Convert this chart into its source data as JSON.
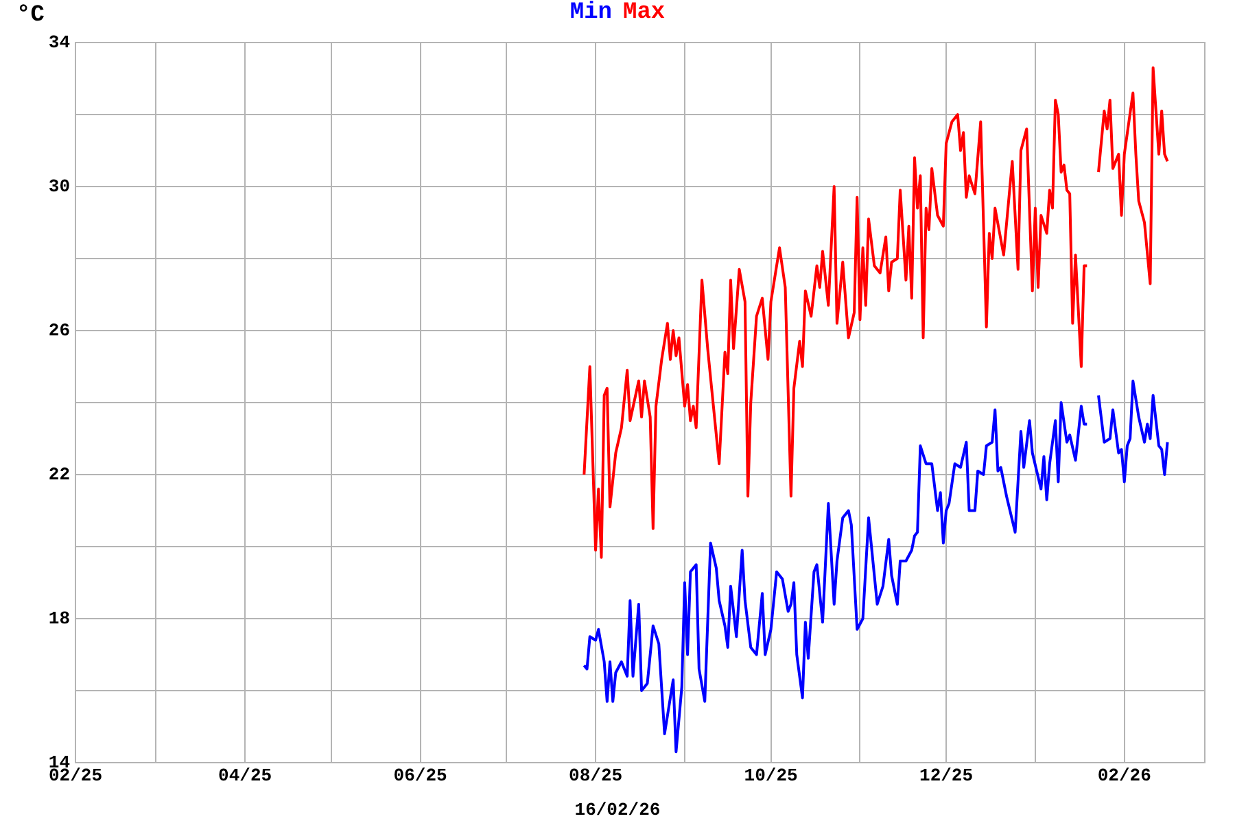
{
  "chart_data": {
    "type": "line",
    "ylabel": "°C",
    "legend": "top",
    "grid": true,
    "annotations": [
      "16/02/26"
    ],
    "xlim": [
      "2025-02-01",
      "2026-03-01"
    ],
    "xticks": [
      {
        "value": "2025-02",
        "label": "02/25"
      },
      {
        "value": "2025-03",
        "label": null
      },
      {
        "value": "2025-04",
        "label": "04/25"
      },
      {
        "value": "2025-05",
        "label": null
      },
      {
        "value": "2025-06",
        "label": "06/25"
      },
      {
        "value": "2025-07",
        "label": null
      },
      {
        "value": "2025-08",
        "label": "08/25"
      },
      {
        "value": "2025-09",
        "label": null
      },
      {
        "value": "2025-10",
        "label": "10/25"
      },
      {
        "value": "2025-11",
        "label": null
      },
      {
        "value": "2025-12",
        "label": "12/25"
      },
      {
        "value": "2026-01",
        "label": null
      },
      {
        "value": "2026-02",
        "label": "02/26"
      },
      {
        "value": "2026-03",
        "label": null
      }
    ],
    "ylim": [
      14,
      34
    ],
    "yticks": [
      14,
      {
        "value": 16,
        "label": null
      },
      18,
      {
        "value": 20,
        "label": null
      },
      22,
      {
        "value": 24,
        "label": null
      },
      26,
      {
        "value": 28,
        "label": null
      },
      30,
      {
        "value": 32,
        "label": null
      },
      34
    ],
    "series": [
      {
        "name": "Min",
        "color": "#0000ff",
        "x": [
          "2025-07-28",
          "2025-07-29",
          "2025-07-30",
          "2025-08-01",
          "2025-08-02",
          "2025-08-04",
          "2025-08-05",
          "2025-08-06",
          "2025-08-07",
          "2025-08-08",
          "2025-08-10",
          "2025-08-12",
          "2025-08-13",
          "2025-08-14",
          "2025-08-16",
          "2025-08-17",
          "2025-08-19",
          "2025-08-21",
          "2025-08-23",
          "2025-08-25",
          "2025-08-28",
          "2025-08-29",
          "2025-08-31",
          "2025-09-01",
          "2025-09-02",
          "2025-09-03",
          "2025-09-05",
          "2025-09-06",
          "2025-09-08",
          "2025-09-10",
          "2025-09-12",
          "2025-09-13",
          "2025-09-15",
          "2025-09-16",
          "2025-09-17",
          "2025-09-19",
          "2025-09-21",
          "2025-09-22",
          "2025-09-24",
          "2025-09-26",
          "2025-09-28",
          "2025-09-29",
          "2025-10-01",
          "2025-10-03",
          "2025-10-05",
          "2025-10-07",
          "2025-10-08",
          "2025-10-09",
          "2025-10-10",
          "2025-10-12",
          "2025-10-13",
          "2025-10-14",
          "2025-10-16",
          "2025-10-17",
          "2025-10-19",
          "2025-10-21",
          "2025-10-23",
          "2025-10-24",
          "2025-10-26",
          "2025-10-28",
          "2025-10-29",
          "2025-10-31",
          "2025-11-02",
          "2025-11-04",
          "2025-11-06",
          "2025-11-07",
          "2025-11-09",
          "2025-11-11",
          "2025-11-12",
          "2025-11-14",
          "2025-11-15",
          "2025-11-17",
          "2025-11-19",
          "2025-11-20",
          "2025-11-21",
          "2025-11-22",
          "2025-11-24",
          "2025-11-26",
          "2025-11-28",
          "2025-11-29",
          "2025-11-30",
          "2025-12-01",
          "2025-12-02",
          "2025-12-04",
          "2025-12-06",
          "2025-12-08",
          "2025-12-09",
          "2025-12-11",
          "2025-12-12",
          "2025-12-14",
          "2025-12-15",
          "2025-12-17",
          "2025-12-18",
          "2025-12-19",
          "2025-12-20",
          "2025-12-22",
          "2025-12-25",
          "2025-12-27",
          "2025-12-28",
          "2025-12-30",
          "2025-12-31",
          "2026-01-03",
          "2026-01-04",
          "2026-01-05",
          "2026-01-06",
          "2026-01-08",
          "2026-01-09",
          "2026-01-10",
          "2026-01-12",
          "2026-01-13",
          "2026-01-15",
          "2026-01-17",
          "2026-01-18",
          "2026-01-19",
          "2026-01-21",
          "2026-01-23",
          "2026-01-25",
          "2026-01-27",
          "2026-01-28",
          "2026-01-30",
          "2026-01-31",
          "2026-02-01",
          "2026-02-02",
          "2026-02-03",
          "2026-02-04",
          "2026-02-06",
          "2026-02-08",
          "2026-02-09",
          "2026-02-10",
          "2026-02-11",
          "2026-02-13",
          "2026-02-14",
          "2026-02-15",
          "2026-02-16"
        ],
        "values": [
          16.7,
          16.6,
          17.5,
          17.4,
          17.7,
          16.8,
          15.7,
          16.8,
          15.7,
          16.5,
          16.8,
          16.4,
          18.5,
          16.4,
          18.4,
          16.0,
          16.2,
          17.8,
          17.3,
          14.8,
          16.3,
          14.3,
          16.1,
          19.0,
          17.0,
          19.3,
          19.5,
          16.6,
          15.7,
          20.1,
          19.4,
          18.5,
          17.8,
          17.2,
          18.9,
          17.5,
          19.9,
          18.5,
          17.2,
          17.0,
          18.7,
          17.0,
          17.7,
          19.3,
          19.1,
          18.2,
          18.4,
          19.0,
          17.0,
          15.8,
          17.9,
          16.9,
          19.3,
          19.5,
          17.9,
          21.2,
          18.4,
          19.6,
          20.8,
          21.0,
          20.6,
          17.7,
          18.0,
          20.8,
          19.2,
          18.4,
          18.9,
          20.2,
          19.2,
          18.4,
          19.6,
          19.6,
          19.9,
          20.3,
          20.4,
          22.8,
          22.3,
          22.3,
          21.0,
          21.5,
          20.1,
          21.0,
          21.2,
          22.3,
          22.2,
          22.9,
          21.0,
          21.0,
          22.1,
          22.0,
          22.8,
          22.9,
          23.8,
          22.1,
          22.2,
          21.4,
          20.4,
          23.2,
          22.2,
          23.5,
          22.6,
          21.6,
          22.5,
          21.3,
          22.3,
          23.5,
          21.8,
          24.0,
          22.9,
          23.1,
          22.4,
          23.9,
          23.4,
          23.4,
          null,
          24.2,
          22.9,
          23.0,
          23.8,
          22.6,
          22.7,
          21.8,
          22.8,
          23.0,
          24.6,
          23.6,
          22.9,
          23.4,
          23.0,
          24.2,
          22.8,
          22.7,
          22.0,
          22.9
        ]
      },
      {
        "name": "Max",
        "color": "#ff0000",
        "x": [
          "2025-07-28",
          "2025-07-30",
          "2025-08-01",
          "2025-08-02",
          "2025-08-03",
          "2025-08-04",
          "2025-08-05",
          "2025-08-06",
          "2025-08-08",
          "2025-08-10",
          "2025-08-12",
          "2025-08-13",
          "2025-08-16",
          "2025-08-17",
          "2025-08-18",
          "2025-08-20",
          "2025-08-21",
          "2025-08-22",
          "2025-08-24",
          "2025-08-26",
          "2025-08-27",
          "2025-08-28",
          "2025-08-29",
          "2025-08-30",
          "2025-09-01",
          "2025-09-02",
          "2025-09-03",
          "2025-09-04",
          "2025-09-05",
          "2025-09-07",
          "2025-09-09",
          "2025-09-11",
          "2025-09-13",
          "2025-09-15",
          "2025-09-16",
          "2025-09-17",
          "2025-09-18",
          "2025-09-20",
          "2025-09-22",
          "2025-09-23",
          "2025-09-24",
          "2025-09-26",
          "2025-09-28",
          "2025-09-30",
          "2025-10-01",
          "2025-10-04",
          "2025-10-06",
          "2025-10-08",
          "2025-10-09",
          "2025-10-11",
          "2025-10-12",
          "2025-10-13",
          "2025-10-15",
          "2025-10-17",
          "2025-10-18",
          "2025-10-19",
          "2025-10-21",
          "2025-10-23",
          "2025-10-24",
          "2025-10-26",
          "2025-10-28",
          "2025-10-30",
          "2025-10-31",
          "2025-11-01",
          "2025-11-02",
          "2025-11-03",
          "2025-11-04",
          "2025-11-06",
          "2025-11-08",
          "2025-11-10",
          "2025-11-11",
          "2025-11-12",
          "2025-11-14",
          "2025-11-15",
          "2025-11-17",
          "2025-11-18",
          "2025-11-19",
          "2025-11-20",
          "2025-11-21",
          "2025-11-22",
          "2025-11-23",
          "2025-11-24",
          "2025-11-25",
          "2025-11-26",
          "2025-11-28",
          "2025-11-30",
          "2025-12-01",
          "2025-12-03",
          "2025-12-05",
          "2025-12-06",
          "2025-12-07",
          "2025-12-08",
          "2025-12-09",
          "2025-12-11",
          "2025-12-13",
          "2025-12-15",
          "2025-12-16",
          "2025-12-17",
          "2025-12-18",
          "2025-12-21",
          "2025-12-24",
          "2025-12-26",
          "2025-12-27",
          "2025-12-29",
          "2025-12-31",
          "2026-01-01",
          "2026-01-02",
          "2026-01-03",
          "2026-01-05",
          "2026-01-06",
          "2026-01-07",
          "2026-01-08",
          "2026-01-09",
          "2026-01-10",
          "2026-01-11",
          "2026-01-12",
          "2026-01-13",
          "2026-01-14",
          "2026-01-15",
          "2026-01-17",
          "2026-01-18",
          "2026-01-19",
          "2026-01-21",
          "2026-01-23",
          "2026-01-25",
          "2026-01-26",
          "2026-01-27",
          "2026-01-28",
          "2026-01-30",
          "2026-01-31",
          "2026-02-01",
          "2026-02-04",
          "2026-02-05",
          "2026-02-06",
          "2026-02-08",
          "2026-02-10",
          "2026-02-11",
          "2026-02-13",
          "2026-02-14",
          "2026-02-15",
          "2026-02-16"
        ],
        "values": [
          22.0,
          25.0,
          19.9,
          21.6,
          19.7,
          24.2,
          24.4,
          21.1,
          22.6,
          23.3,
          24.9,
          23.5,
          24.6,
          23.6,
          24.6,
          23.6,
          20.5,
          23.9,
          25.2,
          26.2,
          25.2,
          26.0,
          25.3,
          25.8,
          23.9,
          24.5,
          23.5,
          23.9,
          23.3,
          27.4,
          25.5,
          23.9,
          22.3,
          25.4,
          24.8,
          27.4,
          25.5,
          27.7,
          26.8,
          21.4,
          24.0,
          26.4,
          26.9,
          25.2,
          26.8,
          28.3,
          27.2,
          21.4,
          24.4,
          25.7,
          25.0,
          27.1,
          26.4,
          27.8,
          27.2,
          28.2,
          26.7,
          30.0,
          26.2,
          27.9,
          25.8,
          26.5,
          29.7,
          26.3,
          28.3,
          26.7,
          29.1,
          27.8,
          27.6,
          28.6,
          27.1,
          27.9,
          28.0,
          29.9,
          27.4,
          28.9,
          26.9,
          30.8,
          29.4,
          30.3,
          25.8,
          29.4,
          28.8,
          30.5,
          29.2,
          28.9,
          31.2,
          31.8,
          32.0,
          31.0,
          31.5,
          29.7,
          30.3,
          29.8,
          31.8,
          26.1,
          28.7,
          28.0,
          29.4,
          28.1,
          30.7,
          27.7,
          31.0,
          31.6,
          27.1,
          29.4,
          27.2,
          29.2,
          28.7,
          29.9,
          29.4,
          32.4,
          32.0,
          30.4,
          30.6,
          29.9,
          29.8,
          26.2,
          28.1,
          25.0,
          27.8,
          27.8,
          null,
          30.4,
          32.1,
          31.6,
          32.4,
          30.5,
          30.9,
          29.2,
          30.9,
          32.6,
          30.9,
          29.6,
          29.0,
          27.3,
          33.3,
          30.9,
          32.1,
          30.9,
          30.7
        ]
      }
    ]
  }
}
